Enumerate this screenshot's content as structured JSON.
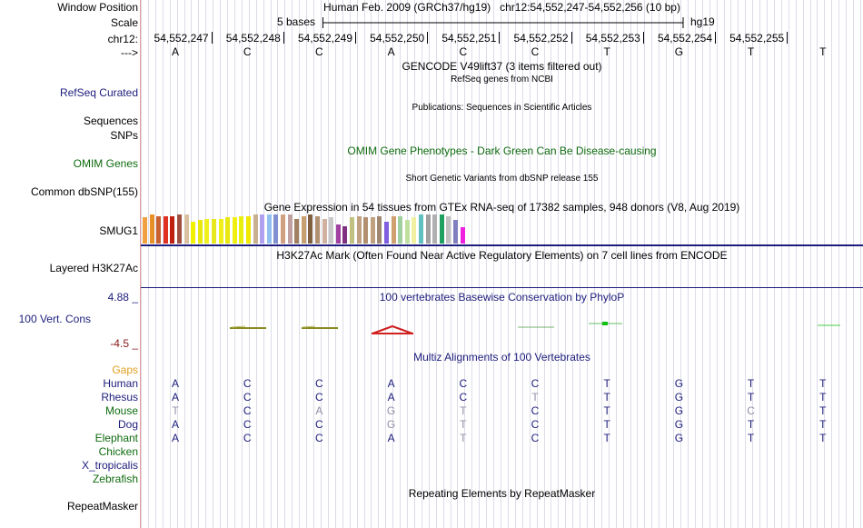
{
  "header": {
    "window_position_label": "Window Position",
    "window_position_value": "Human Feb. 2009 (GRCh37/hg19)   chr12:54,552,247-54,552,256 (10 bp)",
    "scale_label": "Scale",
    "scale_span": "5 bases",
    "scale_assembly": "hg19",
    "chrom_label": "chr12:",
    "strand_label": "--->",
    "positions": [
      "54,552,247",
      "54,552,248",
      "54,552,249",
      "54,552,250",
      "54,552,251",
      "54,552,252",
      "54,552,253",
      "54,552,254",
      "54,552,255"
    ],
    "bases": [
      "A",
      "C",
      "C",
      "A",
      "C",
      "C",
      "T",
      "G",
      "T",
      "T"
    ]
  },
  "tracks": {
    "gencode_title": "GENCODE V49lift37 (3 items filtered out)",
    "refseq_title": "RefSeq genes from NCBI",
    "refseq_label": "RefSeq Curated",
    "publications_title": "Publications: Sequences in Scientific Articles",
    "sequences_label": "Sequences",
    "snps_label": "SNPs",
    "omim_title": "OMIM Gene Phenotypes - Dark Green Can Be Disease-causing",
    "omim_label": "OMIM Genes",
    "dbsnp_title": "Short Genetic Variants from dbSNP release 155",
    "dbsnp_label": "Common dbSNP(155)",
    "gtex_title": "Gene Expression in 54 tissues from GTEx RNA-seq of 17382 samples, 948 donors (V8, Aug 2019)",
    "gtex_label": "SMUG1",
    "h3k27ac_title": "H3K27Ac Mark (Often Found Near Active Regulatory Elements) on 7 cell lines from ENCODE",
    "h3k27ac_label": "Layered H3K27Ac",
    "phylop_title": "100 vertebrates Basewise Conservation by PhyloP",
    "phylop_label": "100 Vert. Cons",
    "phylop_max": "4.88 _",
    "phylop_min": "-4.5 _",
    "multiz_title": "Multiz Alignments of 100 Vertebrates",
    "gaps_label": "Gaps",
    "repeat_title": "Repeating Elements by RepeatMasker",
    "repeat_label": "RepeatMasker"
  },
  "gtex_bar_colors": [
    "#f0a040",
    "#e89028",
    "#c86030",
    "#e03020",
    "#c02010",
    "#a05040",
    "#d8c0a0",
    "#f0f000",
    "#e8e810",
    "#f0f020",
    "#e8e820",
    "#f0f018",
    "#e8e810",
    "#f0f010",
    "#e8f010",
    "#f0e800",
    "#c8b090",
    "#b0a0f0",
    "#90c0f0",
    "#8090d0",
    "#d0a080",
    "#c0a0a0",
    "#a08060",
    "#c8a070",
    "#806040",
    "#b09070",
    "#d0b0a0",
    "#c8c8c8",
    "#a040a0",
    "#803080",
    "#c0c080",
    "#c0a080",
    "#b09070",
    "#c0a080",
    "#a08870",
    "#8060e0",
    "#d0a070",
    "#a0d0a0",
    "#c0e0a0",
    "#f0f0a0",
    "#60c0c0",
    "#a0a0a0",
    "#b0b0b0",
    "#20a060",
    "#c0c0c0",
    "#8080c0",
    "#f020e0"
  ],
  "gtex_bar_heights": [
    0.9,
    1.0,
    0.95,
    0.95,
    0.95,
    1.0,
    1.0,
    0.75,
    0.8,
    0.85,
    0.85,
    0.85,
    0.9,
    0.9,
    0.95,
    0.95,
    1.0,
    1.0,
    1.0,
    1.0,
    1.0,
    1.0,
    0.85,
    0.95,
    1.0,
    0.95,
    0.85,
    0.9,
    0.65,
    0.6,
    0.9,
    0.95,
    0.9,
    0.9,
    0.95,
    0.75,
    0.95,
    0.95,
    0.8,
    0.9,
    1.0,
    1.0,
    1.0,
    1.0,
    0.95,
    0.8,
    0.55
  ],
  "alignment": {
    "species": [
      {
        "name": "Human",
        "color": "#1c1c7c",
        "bases": [
          "A",
          "C",
          "C",
          "A",
          "C",
          "C",
          "T",
          "G",
          "T",
          "T"
        ],
        "faded": [
          false,
          false,
          false,
          false,
          false,
          false,
          false,
          false,
          false,
          false
        ]
      },
      {
        "name": "Rhesus",
        "color": "#1c1c7c",
        "bases": [
          "A",
          "C",
          "C",
          "A",
          "C",
          "T",
          "T",
          "G",
          "T",
          "T"
        ],
        "faded": [
          false,
          false,
          false,
          false,
          false,
          true,
          false,
          false,
          false,
          false
        ]
      },
      {
        "name": "Mouse",
        "color": "#0f6b0f",
        "bases": [
          "T",
          "C",
          "A",
          "G",
          "T",
          "C",
          "T",
          "G",
          "C",
          "T"
        ],
        "faded": [
          true,
          false,
          true,
          true,
          true,
          false,
          false,
          false,
          true,
          false
        ]
      },
      {
        "name": "Dog",
        "color": "#1c1c7c",
        "bases": [
          "A",
          "C",
          "C",
          "G",
          "T",
          "C",
          "T",
          "G",
          "T",
          "T"
        ],
        "faded": [
          false,
          false,
          false,
          true,
          true,
          false,
          false,
          false,
          false,
          false
        ]
      },
      {
        "name": "Elephant",
        "color": "#0f6b0f",
        "bases": [
          "A",
          "C",
          "C",
          "A",
          "T",
          "C",
          "T",
          "G",
          "T",
          "T"
        ],
        "faded": [
          false,
          false,
          false,
          false,
          true,
          false,
          false,
          false,
          false,
          false
        ]
      },
      {
        "name": "Chicken",
        "color": "#0f6b0f",
        "bases": [
          "",
          "",
          "",
          "",
          "",
          "",
          "",
          "",
          "",
          ""
        ],
        "faded": [
          false,
          false,
          false,
          false,
          false,
          false,
          false,
          false,
          false,
          false
        ]
      },
      {
        "name": "X_tropicalis",
        "color": "#1c1c7c",
        "bases": [
          "",
          "",
          "",
          "",
          "",
          "",
          "",
          "",
          "",
          ""
        ],
        "faded": [
          false,
          false,
          false,
          false,
          false,
          false,
          false,
          false,
          false,
          false
        ]
      },
      {
        "name": "Zebrafish",
        "color": "#0f6b0f",
        "bases": [
          "",
          "",
          "",
          "",
          "",
          "",
          "",
          "",
          "",
          ""
        ],
        "faded": [
          false,
          false,
          false,
          false,
          false,
          false,
          false,
          false,
          false,
          false
        ]
      }
    ]
  }
}
